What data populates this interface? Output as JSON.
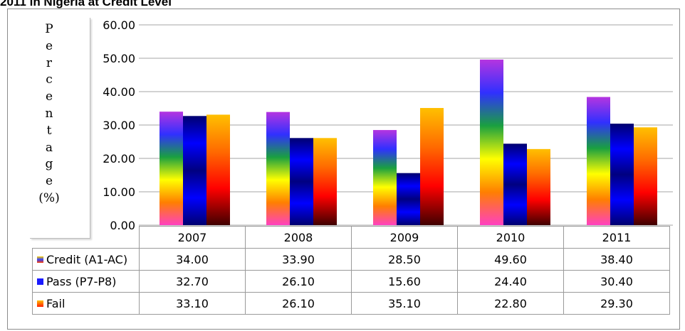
{
  "title": "2011 in Nigeria at Credit Level",
  "colors": {
    "credit": [
      "#b535e0",
      "#3030ff",
      "#1aa040",
      "#ffff00",
      "#ff7f00",
      "#ff40c0"
    ],
    "pass": [
      "#000070",
      "#0000ff",
      "#000080",
      "#0000ff",
      "#000070"
    ],
    "fail": [
      "#ffc000",
      "#ff6a00",
      "#ff0000",
      "#400000"
    ]
  },
  "chart_data": {
    "type": "bar",
    "title": "2011 in Nigeria at Credit Level",
    "ylabel": "Percentage (%)",
    "xlabel": "",
    "ylim": [
      0,
      60
    ],
    "yticks": [
      "0.00",
      "10.00",
      "20.00",
      "30.00",
      "40.00",
      "50.00",
      "60.00"
    ],
    "grid": true,
    "legend": "data table below chart",
    "categories": [
      "2007",
      "2008",
      "2009",
      "2010",
      "2011"
    ],
    "series": [
      {
        "name": "Credit (A1-AC)",
        "values": [
          34.0,
          33.9,
          28.5,
          49.6,
          38.4
        ],
        "labels": [
          "34.00",
          "33.90",
          "28.50",
          "49.60",
          "38.40"
        ]
      },
      {
        "name": "Pass (P7-P8)",
        "values": [
          32.7,
          26.1,
          15.6,
          24.4,
          30.4
        ],
        "labels": [
          "32.70",
          "26.10",
          "15.60",
          "24.40",
          "30.40"
        ]
      },
      {
        "name": "Fail",
        "values": [
          33.1,
          26.1,
          35.1,
          22.8,
          29.3
        ],
        "labels": [
          "33.10",
          "26.10",
          "35.10",
          "22.80",
          "29.30"
        ]
      }
    ]
  }
}
